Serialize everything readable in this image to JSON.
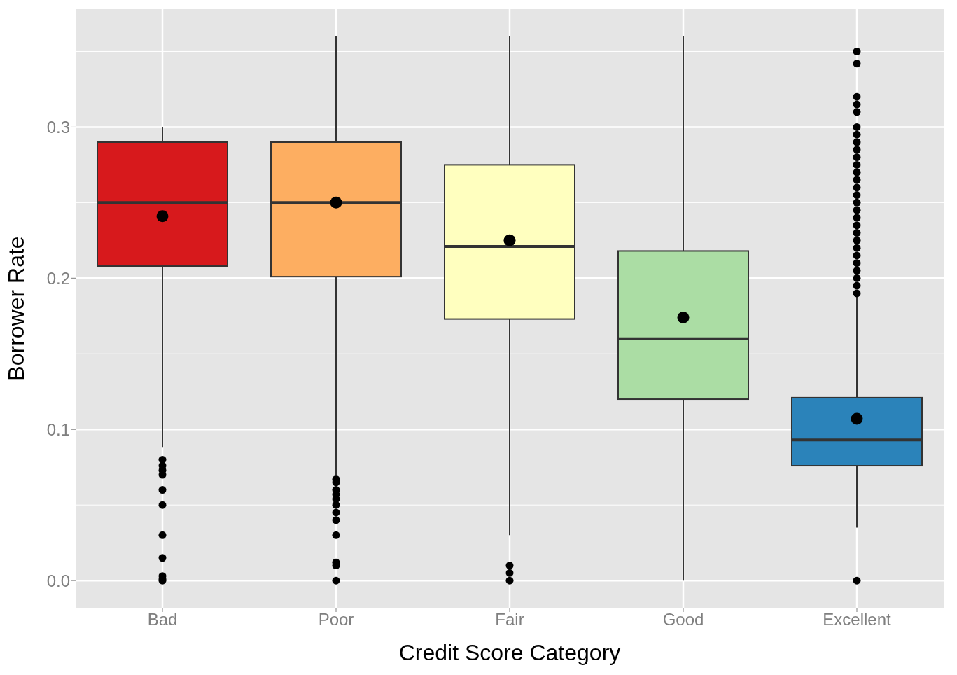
{
  "chart_data": {
    "type": "box",
    "xlabel": "Credit Score Category",
    "ylabel": "Borrower Rate",
    "categories": [
      "Bad",
      "Poor",
      "Fair",
      "Good",
      "Excellent"
    ],
    "colors": [
      "#d7191c",
      "#fdae61",
      "#ffffbf",
      "#abdda4",
      "#2b83ba"
    ],
    "boxes": [
      {
        "low": 0.088,
        "q1": 0.208,
        "median": 0.25,
        "q3": 0.29,
        "high": 0.3,
        "mean": 0.241,
        "outliers": [
          0.08,
          0.076,
          0.073,
          0.07,
          0.06,
          0.05,
          0.03,
          0.015,
          0.003,
          0.001,
          0
        ]
      },
      {
        "low": 0.07,
        "q1": 0.201,
        "median": 0.25,
        "q3": 0.29,
        "high": 0.36,
        "mean": 0.25,
        "outliers": [
          0.067,
          0.065,
          0.06,
          0.057,
          0.054,
          0.05,
          0.045,
          0.04,
          0.03,
          0.012,
          0.01,
          0
        ]
      },
      {
        "low": 0.03,
        "q1": 0.173,
        "median": 0.221,
        "q3": 0.275,
        "high": 0.36,
        "mean": 0.225,
        "outliers": [
          0.01,
          0.005,
          0
        ]
      },
      {
        "low": 0,
        "q1": 0.12,
        "median": 0.16,
        "q3": 0.218,
        "high": 0.36,
        "mean": 0.174
      },
      {
        "low": 0.035,
        "q1": 0.076,
        "median": 0.093,
        "q3": 0.121,
        "high": 0.19,
        "mean": 0.107,
        "outliers": [
          0.35,
          0.342,
          0.32,
          0.315,
          0.31,
          0.3,
          0.295,
          0.29,
          0.285,
          0.28,
          0.275,
          0.27,
          0.265,
          0.26,
          0.255,
          0.25,
          0.245,
          0.24,
          0.235,
          0.23,
          0.225,
          0.22,
          0.215,
          0.21,
          0.205,
          0.2,
          0.195,
          0.19,
          0
        ]
      }
    ],
    "ylim": [
      -0.018,
      0.378
    ],
    "yticks": [
      {
        "value": 0,
        "label": "0.0"
      },
      0.1,
      0.2,
      0.3
    ],
    "grid": true
  }
}
